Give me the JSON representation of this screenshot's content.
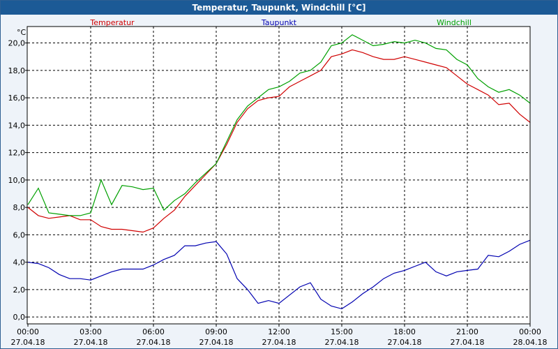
{
  "window": {
    "title": "Temperatur, Taupunkt, Windchill [°C]"
  },
  "chart_data": {
    "type": "line",
    "title": "Temperatur, Taupunkt, Windchill [°C]",
    "ylabel": "°C",
    "ylim": [
      -0.5,
      21.2
    ],
    "grid": true,
    "legend": "top",
    "x_hours": [
      0,
      0.5,
      1,
      1.5,
      2,
      2.5,
      3,
      3.5,
      4,
      4.5,
      5,
      5.5,
      6,
      6.5,
      7,
      7.5,
      8,
      8.5,
      9,
      9.5,
      10,
      10.5,
      11,
      11.5,
      12,
      12.5,
      13,
      13.5,
      14,
      14.5,
      15,
      15.5,
      16,
      16.5,
      17,
      17.5,
      18,
      18.5,
      19,
      19.5,
      20,
      20.5,
      21,
      21.5,
      22,
      22.5,
      23,
      23.5,
      24
    ],
    "x_ticks": [
      {
        "time": "00:00",
        "date": "27.04.18"
      },
      {
        "time": "03:00",
        "date": "27.04.18"
      },
      {
        "time": "06:00",
        "date": "27.04.18"
      },
      {
        "time": "09:00",
        "date": "27.04.18"
      },
      {
        "time": "12:00",
        "date": "27.04.18"
      },
      {
        "time": "15:00",
        "date": "27.04.18"
      },
      {
        "time": "18:00",
        "date": "27.04.18"
      },
      {
        "time": "21:00",
        "date": "27.04.18"
      },
      {
        "time": "00:00",
        "date": "28.04.18"
      }
    ],
    "y_ticks": [
      "0,0",
      "2,0",
      "4,0",
      "6,0",
      "8,0",
      "10,0",
      "12,0",
      "14,0",
      "16,0",
      "18,0",
      "20,0"
    ],
    "series": [
      {
        "name": "Temperatur",
        "color": "#d00000",
        "values": [
          8.0,
          7.4,
          7.2,
          7.3,
          7.4,
          7.1,
          7.1,
          6.6,
          6.4,
          6.4,
          6.3,
          6.2,
          6.5,
          7.2,
          7.8,
          8.8,
          9.6,
          10.4,
          11.2,
          12.6,
          14.2,
          15.2,
          15.8,
          16.0,
          16.1,
          16.8,
          17.2,
          17.6,
          18.0,
          19.0,
          19.2,
          19.5,
          19.3,
          19.0,
          18.8,
          18.8,
          19.0,
          18.8,
          18.6,
          18.4,
          18.2,
          17.6,
          17.0,
          16.6,
          16.2,
          15.5,
          15.6,
          14.8,
          14.2
        ]
      },
      {
        "name": "Taupunkt",
        "color": "#0000b0",
        "values": [
          4.0,
          3.9,
          3.6,
          3.1,
          2.8,
          2.8,
          2.7,
          3.0,
          3.3,
          3.5,
          3.5,
          3.5,
          3.8,
          4.2,
          4.5,
          5.2,
          5.2,
          5.4,
          5.5,
          4.6,
          2.8,
          2.0,
          1.0,
          1.2,
          1.0,
          1.6,
          2.2,
          2.5,
          1.3,
          0.8,
          0.6,
          1.1,
          1.7,
          2.2,
          2.8,
          3.2,
          3.4,
          3.7,
          4.0,
          3.3,
          3.0,
          3.3,
          3.4,
          3.5,
          4.5,
          4.4,
          4.8,
          5.3,
          5.6
        ]
      },
      {
        "name": "Windchill",
        "color": "#00a000",
        "values": [
          8.2,
          9.4,
          7.6,
          7.5,
          7.4,
          7.4,
          7.6,
          10.0,
          8.2,
          9.6,
          9.5,
          9.3,
          9.4,
          7.8,
          8.5,
          9.0,
          9.8,
          10.5,
          11.2,
          12.8,
          14.4,
          15.4,
          16.0,
          16.6,
          16.8,
          17.2,
          17.8,
          18.0,
          18.6,
          19.8,
          20.0,
          20.6,
          20.2,
          19.8,
          19.9,
          20.1,
          20.0,
          20.2,
          20.0,
          19.6,
          19.5,
          18.8,
          18.4,
          17.4,
          16.8,
          16.4,
          16.6,
          16.2,
          15.6
        ]
      }
    ]
  }
}
